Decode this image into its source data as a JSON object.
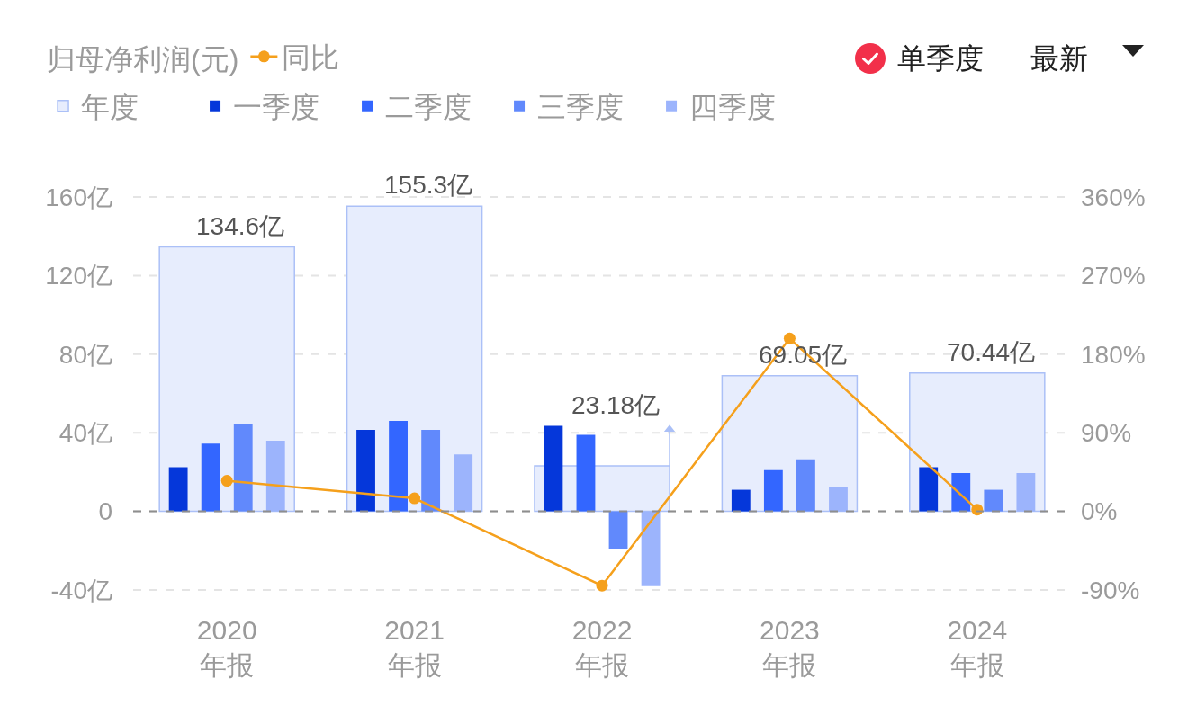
{
  "chart_data": {
    "type": "bar",
    "legend_title": "归母净利润(元)",
    "categories": [
      "2020\n年报",
      "2021\n年报",
      "2022\n年报",
      "2023\n年报",
      "2024\n年报"
    ],
    "series": [
      {
        "name": "年度",
        "color": "#e7edfd",
        "values": [
          134.6,
          155.3,
          23.18,
          69.05,
          70.44
        ],
        "value_labels": [
          "134.6亿",
          "155.3亿",
          "23.18亿",
          "69.05亿",
          "70.44亿"
        ]
      },
      {
        "name": "一季度",
        "color": "#0537da",
        "values": [
          22.5,
          41.5,
          43.5,
          11,
          22.5
        ]
      },
      {
        "name": "二季度",
        "color": "#3366ff",
        "values": [
          34.5,
          46,
          39,
          21,
          19.5
        ]
      },
      {
        "name": "三季度",
        "color": "#6189fc",
        "values": [
          44.5,
          41.5,
          -19,
          26.5,
          11
        ]
      },
      {
        "name": "四季度",
        "color": "#9cb4fc",
        "values": [
          36,
          29,
          -38,
          12.5,
          19.5
        ]
      },
      {
        "name": "同比",
        "type": "line",
        "axis": "y2",
        "color": "#f5a01c",
        "values": [
          35,
          15,
          -85,
          198,
          2
        ]
      }
    ],
    "ylim": [
      -40,
      160
    ],
    "yticks": [
      {
        "value": -40,
        "label": "-40亿"
      },
      0,
      {
        "value": 40,
        "label": "40亿"
      },
      {
        "value": 80,
        "label": "80亿"
      },
      {
        "value": 120,
        "label": "120亿"
      },
      {
        "value": 160,
        "label": "160亿"
      }
    ],
    "y2lim": [
      -90,
      360
    ],
    "y2ticks": [
      {
        "value": -90,
        "label": "-90%"
      },
      {
        "value": 0,
        "label": "0%"
      },
      {
        "value": 90,
        "label": "90%"
      },
      {
        "value": 180,
        "label": "180%"
      },
      {
        "value": 270,
        "label": "270%"
      },
      {
        "value": 360,
        "label": "360%"
      }
    ],
    "ref_lines": [
      {
        "axis": "y",
        "value": 0,
        "color": "#8e8e8e",
        "line_style": "dashed"
      }
    ],
    "grid": "y",
    "legend": "top left",
    "marker": "circle",
    "annotations": [
      "单季度",
      "最新"
    ]
  }
}
